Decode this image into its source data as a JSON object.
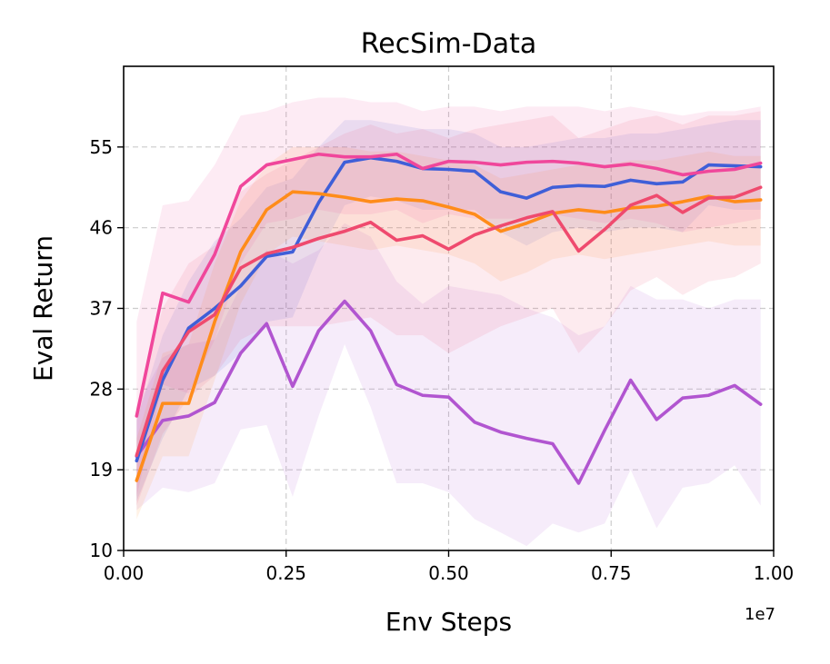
{
  "chart_data": {
    "type": "line",
    "title": "RecSim-Data",
    "xlabel": "Env Steps",
    "ylabel": "Eval Return",
    "x_offset_label": "1e7",
    "xlim": [
      0,
      1.0
    ],
    "ylim": [
      10,
      64
    ],
    "xticks": [
      0.0,
      0.25,
      0.5,
      0.75,
      1.0
    ],
    "xtick_labels": [
      "0.00",
      "0.25",
      "0.50",
      "0.75",
      "1.00"
    ],
    "yticks": [
      10,
      19,
      28,
      37,
      46,
      55
    ],
    "ytick_labels": [
      "10",
      "19",
      "28",
      "37",
      "46",
      "55"
    ],
    "grid": true,
    "x": [
      0.02,
      0.06,
      0.1,
      0.14,
      0.18,
      0.22,
      0.26,
      0.3,
      0.34,
      0.38,
      0.42,
      0.46,
      0.5,
      0.54,
      0.58,
      0.62,
      0.66,
      0.7,
      0.74,
      0.78,
      0.82,
      0.86,
      0.9,
      0.94,
      0.98
    ],
    "series": [
      {
        "name": "purple",
        "color": "#b155d0",
        "values": [
          20.5,
          24.5,
          25.0,
          26.5,
          32.0,
          35.3,
          28.3,
          34.5,
          37.8,
          34.5,
          28.5,
          27.3,
          27.1,
          24.3,
          23.2,
          22.5,
          21.9,
          17.5,
          23.4,
          29.0,
          24.6,
          27.0,
          27.3,
          28.4,
          26.3
        ],
        "upper": [
          26.0,
          31.5,
          33.0,
          33.5,
          39.5,
          43.5,
          42.0,
          43.5,
          46.5,
          45.0,
          40.0,
          37.5,
          39.5,
          39.0,
          38.5,
          37.0,
          36.0,
          34.0,
          35.0,
          39.5,
          38.0,
          38.0,
          37.0,
          38.0,
          38.0
        ],
        "lower": [
          14.5,
          17.0,
          16.5,
          17.5,
          23.5,
          24.0,
          16.0,
          25.0,
          33.0,
          26.0,
          17.5,
          17.5,
          16.5,
          13.5,
          12.0,
          10.5,
          13.0,
          12.0,
          13.0,
          19.0,
          12.5,
          17.0,
          17.5,
          19.5,
          15.0
        ]
      },
      {
        "name": "blue",
        "color": "#3f5fd8",
        "values": [
          20.0,
          29.0,
          34.8,
          37.0,
          39.5,
          42.8,
          43.3,
          48.8,
          53.3,
          53.8,
          53.4,
          52.6,
          52.5,
          52.3,
          50.0,
          49.3,
          50.5,
          50.7,
          50.6,
          51.3,
          50.9,
          51.1,
          53.0,
          52.9,
          52.8
        ],
        "upper": [
          24.5,
          34.0,
          40.0,
          44.5,
          47.0,
          50.5,
          51.5,
          55.0,
          58.0,
          58.0,
          57.5,
          57.0,
          57.0,
          56.5,
          55.0,
          55.0,
          55.5,
          56.0,
          56.0,
          56.5,
          56.5,
          57.0,
          57.5,
          58.0,
          58.0
        ],
        "lower": [
          15.5,
          22.5,
          28.0,
          29.5,
          32.0,
          35.5,
          36.0,
          43.0,
          48.5,
          49.5,
          49.0,
          48.0,
          48.0,
          48.0,
          45.5,
          44.0,
          45.5,
          46.0,
          45.5,
          46.0,
          46.0,
          45.5,
          48.5,
          48.0,
          48.0
        ]
      },
      {
        "name": "orange",
        "color": "#ff8c1a",
        "values": [
          17.8,
          26.4,
          26.4,
          35.5,
          43.3,
          48.0,
          50.0,
          49.8,
          49.4,
          48.9,
          49.2,
          49.0,
          48.3,
          47.5,
          45.6,
          46.5,
          47.6,
          48.0,
          47.7,
          48.2,
          48.4,
          48.9,
          49.5,
          48.9,
          49.1
        ],
        "upper": [
          22.5,
          32.0,
          33.0,
          42.0,
          49.0,
          53.0,
          55.0,
          55.0,
          55.0,
          54.5,
          54.5,
          54.0,
          53.5,
          53.0,
          51.5,
          52.0,
          52.5,
          53.0,
          53.0,
          53.5,
          53.5,
          54.0,
          54.5,
          54.0,
          54.0
        ],
        "lower": [
          13.5,
          20.5,
          20.5,
          29.0,
          37.5,
          43.0,
          45.0,
          44.5,
          44.0,
          43.5,
          44.0,
          43.5,
          43.0,
          42.0,
          40.0,
          41.0,
          42.5,
          43.0,
          42.5,
          43.0,
          43.5,
          44.0,
          44.5,
          44.0,
          44.0
        ]
      },
      {
        "name": "red",
        "color": "#ef4a6e",
        "values": [
          20.6,
          30.0,
          34.4,
          36.3,
          41.5,
          43.1,
          43.8,
          44.8,
          45.6,
          46.6,
          44.6,
          45.1,
          43.6,
          45.2,
          46.2,
          47.1,
          47.8,
          43.4,
          45.8,
          48.5,
          49.6,
          47.7,
          49.3,
          49.4,
          50.5
        ],
        "upper": [
          26.0,
          37.0,
          42.0,
          44.0,
          50.0,
          52.0,
          53.5,
          55.0,
          56.5,
          57.5,
          56.5,
          57.0,
          56.0,
          57.0,
          57.5,
          58.0,
          58.5,
          56.0,
          57.0,
          58.0,
          58.5,
          57.5,
          58.5,
          58.5,
          59.0
        ],
        "lower": [
          15.0,
          23.0,
          27.0,
          29.5,
          33.5,
          35.0,
          35.0,
          35.0,
          35.5,
          36.0,
          34.0,
          34.0,
          32.0,
          33.5,
          35.0,
          36.0,
          37.0,
          32.0,
          35.0,
          39.0,
          40.5,
          38.5,
          40.0,
          40.5,
          42.0
        ]
      },
      {
        "name": "pink",
        "color": "#f0479b",
        "values": [
          25.0,
          38.7,
          37.7,
          43.0,
          50.6,
          53.0,
          53.6,
          54.2,
          53.9,
          53.9,
          54.2,
          52.6,
          53.4,
          53.3,
          53.0,
          53.3,
          53.4,
          53.2,
          52.8,
          53.1,
          52.6,
          51.9,
          52.3,
          52.5,
          53.2
        ],
        "upper": [
          35.5,
          48.5,
          49.0,
          53.0,
          58.5,
          59.0,
          60.0,
          60.5,
          60.5,
          60.0,
          60.0,
          59.0,
          59.5,
          59.5,
          59.0,
          59.5,
          59.5,
          59.5,
          59.0,
          59.5,
          59.0,
          58.5,
          59.0,
          59.0,
          59.5
        ],
        "lower": [
          16.0,
          28.5,
          27.5,
          33.5,
          42.0,
          46.5,
          47.0,
          48.0,
          47.5,
          47.5,
          48.0,
          46.5,
          47.5,
          47.0,
          47.0,
          47.0,
          47.5,
          47.0,
          46.5,
          47.0,
          46.5,
          45.5,
          46.0,
          46.5,
          47.0
        ]
      }
    ]
  }
}
